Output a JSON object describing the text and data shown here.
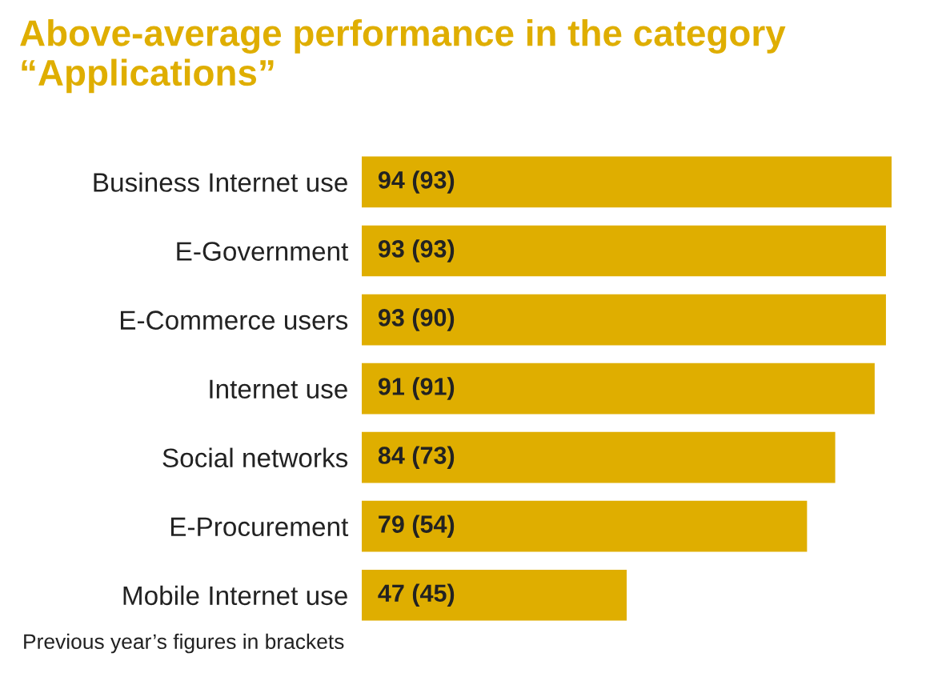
{
  "chart_data": {
    "type": "bar",
    "orientation": "horizontal",
    "title": "Above-average performance in the category “Applications”",
    "categories": [
      "Business Internet use",
      "E-Government",
      "E-Commerce users",
      "Internet use",
      "Social networks",
      "E-Procurement",
      "Mobile Internet use"
    ],
    "values": [
      94,
      93,
      93,
      91,
      84,
      79,
      47
    ],
    "value_labels": [
      "94 (93)",
      "93 (93)",
      "93 (90)",
      "91 (91)",
      "84 (73)",
      "79 (54)",
      "47 (45)"
    ],
    "color": "#dfae00",
    "annotations": [
      "Previous year’s figures in brackets"
    ],
    "tick_labels": "y"
  }
}
